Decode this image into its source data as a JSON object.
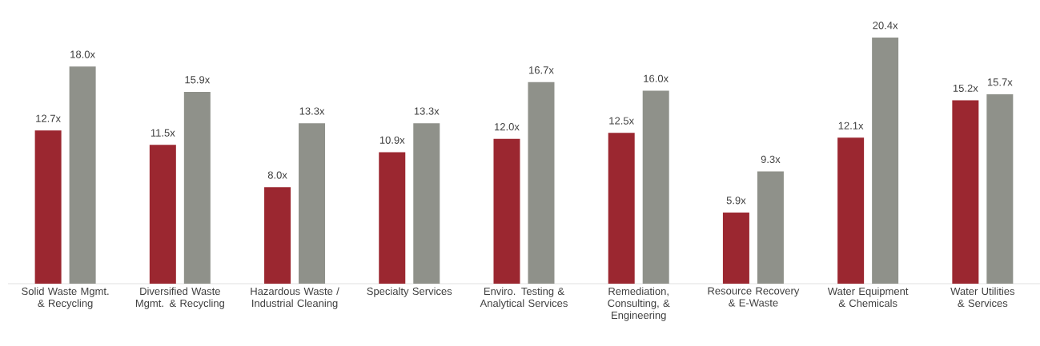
{
  "chart_data": {
    "type": "bar",
    "categories": [
      "Solid Waste Mgmt. & Recycling",
      "Diversified Waste Mgmt. & Recycling",
      "Hazardous Waste / Industrial Cleaning",
      "Specialty Services",
      "Enviro. Testing & Analytical Services",
      "Remediation, Consulting, & Engineering",
      "Resource Recovery & E-Waste",
      "Water Equipment & Chemicals",
      "Water Utilities & Services"
    ],
    "series": [
      {
        "color": "#9b2730",
        "values": [
          12.7,
          11.5,
          8.0,
          10.9,
          12.0,
          12.5,
          5.9,
          12.1,
          15.2
        ],
        "value_labels": [
          "12.7x",
          "11.5x",
          "8.0x",
          "10.9x",
          "12.0x",
          "12.5x",
          "5.9x",
          "12.1x",
          "15.2x"
        ]
      },
      {
        "color": "#8f918a",
        "values": [
          18.0,
          15.9,
          13.3,
          13.3,
          16.7,
          16.0,
          9.3,
          20.4,
          15.7
        ],
        "value_labels": [
          "18.0x",
          "15.9x",
          "13.3x",
          "13.3x",
          "16.7x",
          "16.0x",
          "9.3x",
          "20.4x",
          "15.7x"
        ]
      }
    ]
  }
}
